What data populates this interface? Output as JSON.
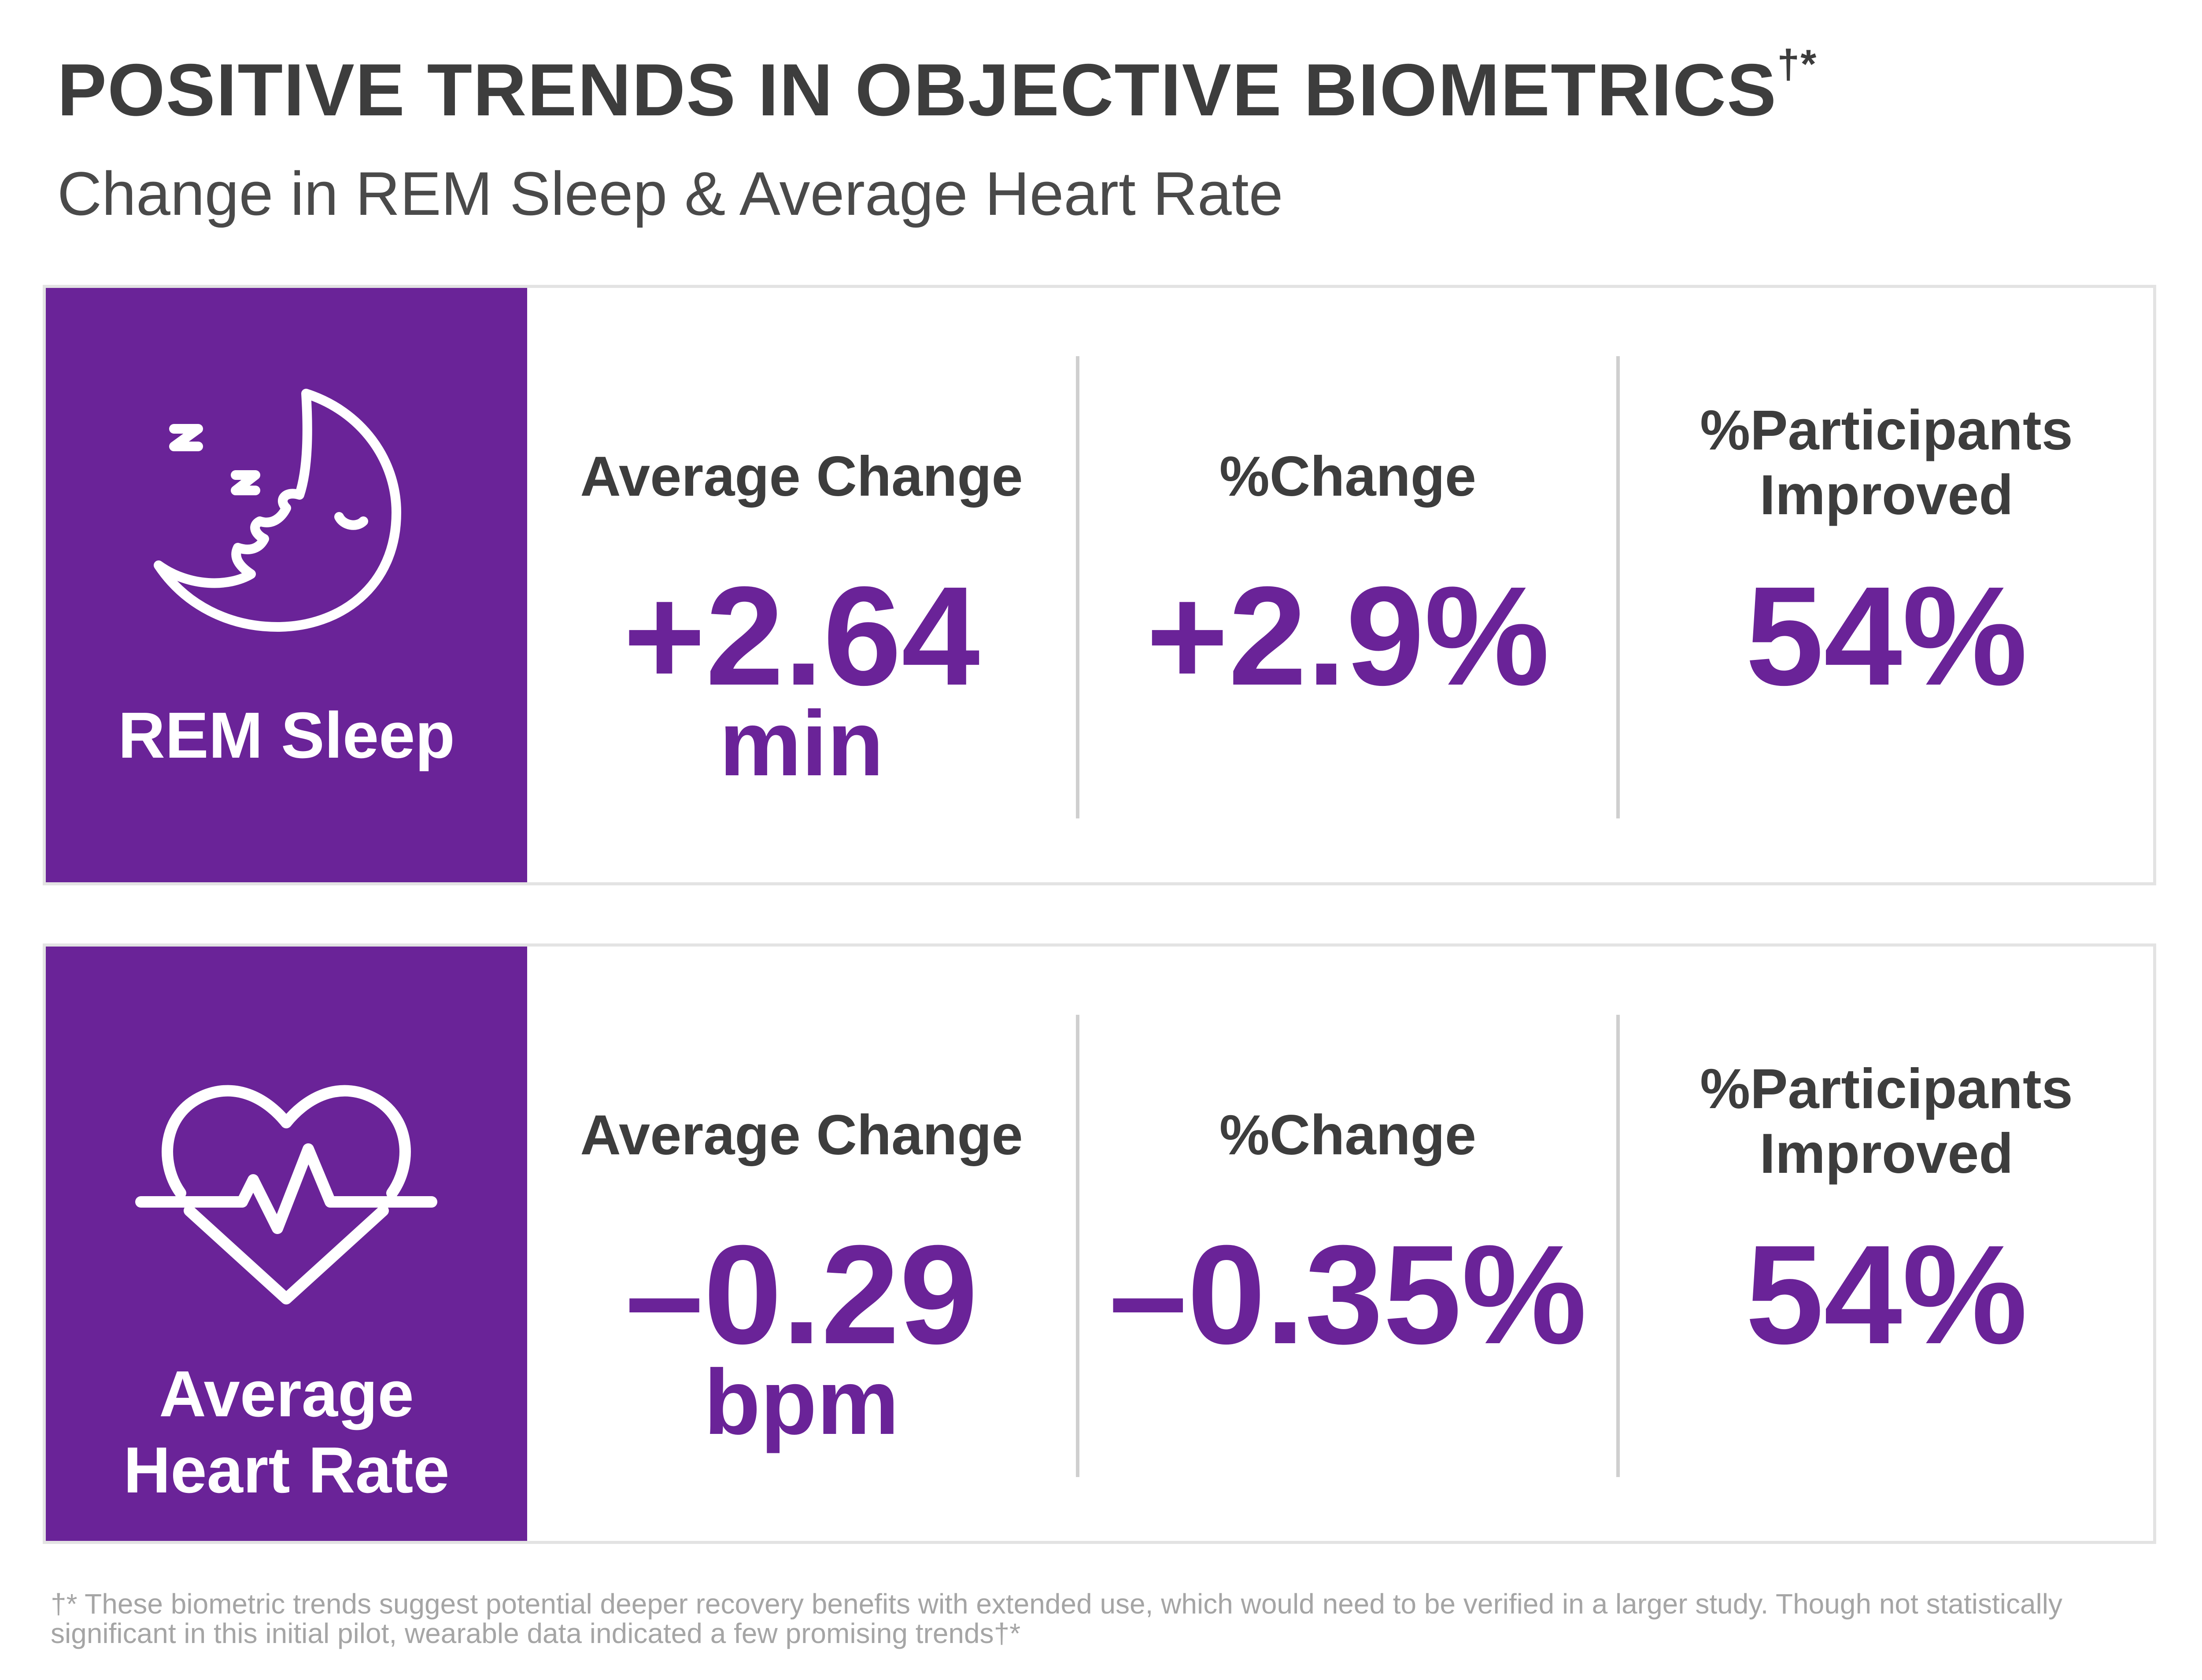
{
  "header": {
    "title": "POSITIVE TRENDS IN OBJECTIVE BIOMETRICS",
    "title_mark": "†*",
    "subtitle": "Change in REM Sleep & Average Heart Rate"
  },
  "colors": {
    "accent": "#6a2398",
    "text": "#3d3d3d",
    "border": "#e3e3e3",
    "divider": "#cfcfcf",
    "footnote": "#a5a5a5"
  },
  "cards": [
    {
      "label": "REM Sleep",
      "icon": "moon-sleep-icon",
      "metrics": {
        "avg_change_head": "Average Change",
        "avg_change_value": "+2.64",
        "avg_change_unit": "min",
        "pct_change_head": "%Change",
        "pct_change_value": "+2.9%",
        "participants_head_1": "%Participants",
        "participants_head_2": "Improved",
        "participants_value": "54%"
      }
    },
    {
      "label_1": "Average",
      "label_2": "Heart Rate",
      "icon": "heart-pulse-icon",
      "metrics": {
        "avg_change_head": "Average Change",
        "avg_change_value": "–0.29",
        "avg_change_unit": "bpm",
        "pct_change_head": "%Change",
        "pct_change_value": "–0.35%",
        "participants_head_1": "%Participants",
        "participants_head_2": "Improved",
        "participants_value": "54%"
      }
    }
  ],
  "footnote": "†* These biometric trends suggest potential deeper recovery benefits with extended use, which would need to be verified in a larger study. Though not statistically significant in this initial pilot, wearable data indicated a few promising trends†*"
}
